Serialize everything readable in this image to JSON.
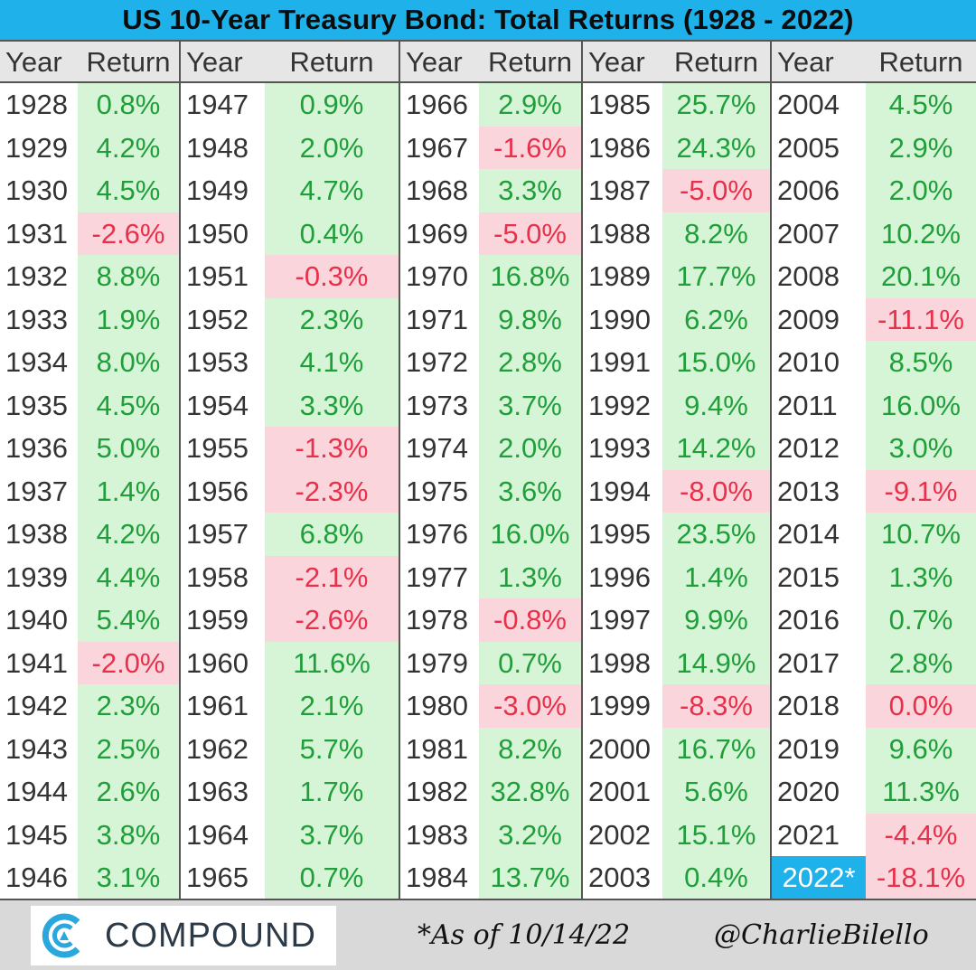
{
  "title": "US 10-Year Treasury Bond: Total Returns (1928 - 2022)",
  "headers": {
    "year": "Year",
    "return": "Return"
  },
  "footer": {
    "logo_text": "COMPOUND",
    "as_of": "*As of 10/14/22",
    "handle": "@CharlieBilello"
  },
  "colors": {
    "title_bg": "#1fb1ea",
    "positive_bg": "#d6f5d6",
    "positive_text": "#1f9e3a",
    "negative_bg": "#fbd5dc",
    "negative_text": "#e8304a",
    "ytd_bg": "#1fb1ea"
  },
  "chart_data": {
    "type": "table",
    "title": "US 10-Year Treasury Bond: Total Returns (1928 - 2022)",
    "columns": [
      "Year",
      "Return"
    ],
    "rows": [
      [
        "1928",
        "0.8%"
      ],
      [
        "1929",
        "4.2%"
      ],
      [
        "1930",
        "4.5%"
      ],
      [
        "1931",
        "-2.6%"
      ],
      [
        "1932",
        "8.8%"
      ],
      [
        "1933",
        "1.9%"
      ],
      [
        "1934",
        "8.0%"
      ],
      [
        "1935",
        "4.5%"
      ],
      [
        "1936",
        "5.0%"
      ],
      [
        "1937",
        "1.4%"
      ],
      [
        "1938",
        "4.2%"
      ],
      [
        "1939",
        "4.4%"
      ],
      [
        "1940",
        "5.4%"
      ],
      [
        "1941",
        "-2.0%"
      ],
      [
        "1942",
        "2.3%"
      ],
      [
        "1943",
        "2.5%"
      ],
      [
        "1944",
        "2.6%"
      ],
      [
        "1945",
        "3.8%"
      ],
      [
        "1946",
        "3.1%"
      ],
      [
        "1947",
        "0.9%"
      ],
      [
        "1948",
        "2.0%"
      ],
      [
        "1949",
        "4.7%"
      ],
      [
        "1950",
        "0.4%"
      ],
      [
        "1951",
        "-0.3%"
      ],
      [
        "1952",
        "2.3%"
      ],
      [
        "1953",
        "4.1%"
      ],
      [
        "1954",
        "3.3%"
      ],
      [
        "1955",
        "-1.3%"
      ],
      [
        "1956",
        "-2.3%"
      ],
      [
        "1957",
        "6.8%"
      ],
      [
        "1958",
        "-2.1%"
      ],
      [
        "1959",
        "-2.6%"
      ],
      [
        "1960",
        "11.6%"
      ],
      [
        "1961",
        "2.1%"
      ],
      [
        "1962",
        "5.7%"
      ],
      [
        "1963",
        "1.7%"
      ],
      [
        "1964",
        "3.7%"
      ],
      [
        "1965",
        "0.7%"
      ],
      [
        "1966",
        "2.9%"
      ],
      [
        "1967",
        "-1.6%"
      ],
      [
        "1968",
        "3.3%"
      ],
      [
        "1969",
        "-5.0%"
      ],
      [
        "1970",
        "16.8%"
      ],
      [
        "1971",
        "9.8%"
      ],
      [
        "1972",
        "2.8%"
      ],
      [
        "1973",
        "3.7%"
      ],
      [
        "1974",
        "2.0%"
      ],
      [
        "1975",
        "3.6%"
      ],
      [
        "1976",
        "16.0%"
      ],
      [
        "1977",
        "1.3%"
      ],
      [
        "1978",
        "-0.8%"
      ],
      [
        "1979",
        "0.7%"
      ],
      [
        "1980",
        "-3.0%"
      ],
      [
        "1981",
        "8.2%"
      ],
      [
        "1982",
        "32.8%"
      ],
      [
        "1983",
        "3.2%"
      ],
      [
        "1984",
        "13.7%"
      ],
      [
        "1985",
        "25.7%"
      ],
      [
        "1986",
        "24.3%"
      ],
      [
        "1987",
        "-5.0%"
      ],
      [
        "1988",
        "8.2%"
      ],
      [
        "1989",
        "17.7%"
      ],
      [
        "1990",
        "6.2%"
      ],
      [
        "1991",
        "15.0%"
      ],
      [
        "1992",
        "9.4%"
      ],
      [
        "1993",
        "14.2%"
      ],
      [
        "1994",
        "-8.0%"
      ],
      [
        "1995",
        "23.5%"
      ],
      [
        "1996",
        "1.4%"
      ],
      [
        "1997",
        "9.9%"
      ],
      [
        "1998",
        "14.9%"
      ],
      [
        "1999",
        "-8.3%"
      ],
      [
        "2000",
        "16.7%"
      ],
      [
        "2001",
        "5.6%"
      ],
      [
        "2002",
        "15.1%"
      ],
      [
        "2003",
        "0.4%"
      ],
      [
        "2004",
        "4.5%"
      ],
      [
        "2005",
        "2.9%"
      ],
      [
        "2006",
        "2.0%"
      ],
      [
        "2007",
        "10.2%"
      ],
      [
        "2008",
        "20.1%"
      ],
      [
        "2009",
        "-11.1%"
      ],
      [
        "2010",
        "8.5%"
      ],
      [
        "2011",
        "16.0%"
      ],
      [
        "2012",
        "3.0%"
      ],
      [
        "2013",
        "-9.1%"
      ],
      [
        "2014",
        "10.7%"
      ],
      [
        "2015",
        "1.3%"
      ],
      [
        "2016",
        "0.7%"
      ],
      [
        "2017",
        "2.8%"
      ],
      [
        "2018",
        "0.0%"
      ],
      [
        "2019",
        "9.6%"
      ],
      [
        "2020",
        "11.3%"
      ],
      [
        "2021",
        "-4.4%"
      ],
      [
        "2022*",
        "-18.1%"
      ]
    ]
  }
}
